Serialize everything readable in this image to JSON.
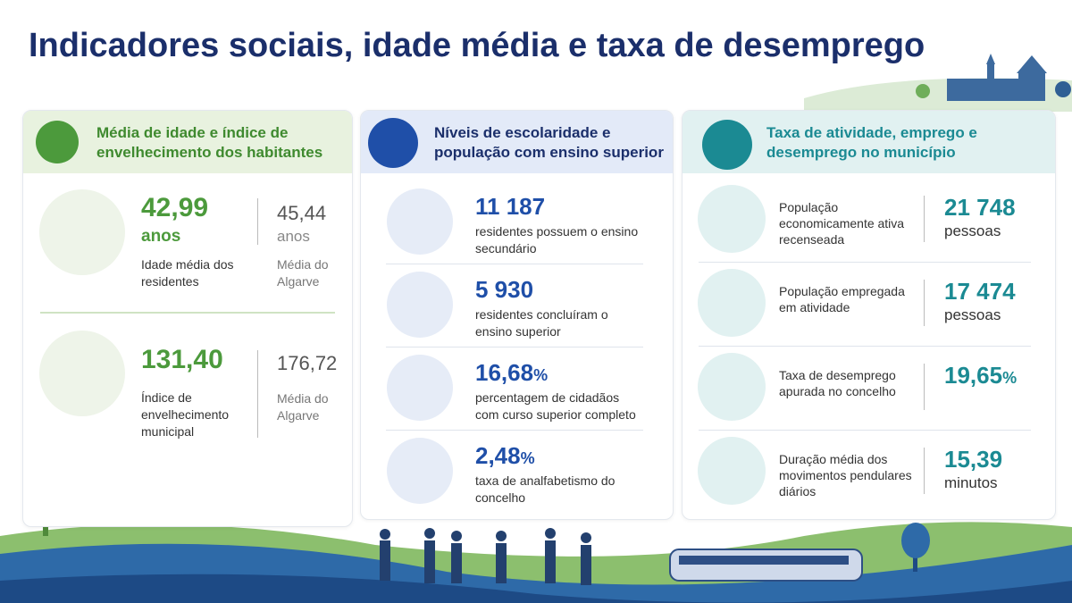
{
  "title": "Indicadores sociais, idade média e taxa de desemprego",
  "panels": [
    {
      "title": "Média de idade e índice de envelhecimento dos habitantes",
      "items": [
        {
          "value": "42,99",
          "unit": "anos",
          "label": "Idade média dos residentes",
          "ref_value": "45,44",
          "ref_unit": "anos",
          "ref_label": "Média do Algarve"
        },
        {
          "value": "131,40",
          "label": "Índice de envelhecimento municipal",
          "ref_value": "176,72",
          "ref_label": "Média do Algarve"
        }
      ]
    },
    {
      "title": "Níveis de escolaridade e população com ensino superior",
      "items": [
        {
          "value": "11 187",
          "label": "residentes possuem o ensino secundário"
        },
        {
          "value": "5 930",
          "label": "residentes concluíram o ensino superior"
        },
        {
          "value": "16,68",
          "unit": "%",
          "label": "percentagem de cidadãos com curso superior completo"
        },
        {
          "value": "2,48",
          "unit": "%",
          "label": "taxa de analfabetismo do concelho"
        }
      ]
    },
    {
      "title": "Taxa de atividade, emprego e desemprego no município",
      "items": [
        {
          "label": "População economicamente ativa recenseada",
          "value": "21 748",
          "unit": "pessoas"
        },
        {
          "label": "População empregada em atividade",
          "value": "17 474",
          "unit": "pessoas"
        },
        {
          "label": "Taxa de desemprego apurada no concelho",
          "value": "19,65",
          "unit": "%"
        },
        {
          "label": "Duração média dos movimentos pendulares diários",
          "value": "15,39",
          "unit": "minutos"
        }
      ]
    }
  ]
}
